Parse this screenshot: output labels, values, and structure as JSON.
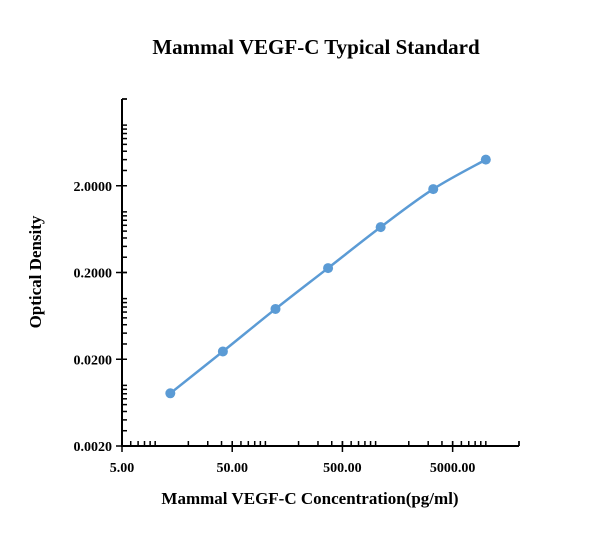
{
  "chart_data": {
    "type": "line",
    "title": "Mammal VEGF-C Typical Standard",
    "xlabel": "Mammal VEGF-C Concentration(pg/ml)",
    "ylabel": "Optical Density",
    "x_scale": "log",
    "y_scale": "log",
    "xlim": [
      5,
      20000
    ],
    "ylim": [
      0.002,
      20
    ],
    "x_ticks": [
      5,
      50,
      500,
      5000
    ],
    "x_tick_labels": [
      "5.00",
      "50.00",
      "500.00",
      "5000.00"
    ],
    "y_ticks": [
      0.002,
      0.02,
      0.2,
      2
    ],
    "y_tick_labels": [
      "0.0020",
      "0.0200",
      "0.2000",
      "2.0000"
    ],
    "grid": false,
    "legend": "none",
    "series": [
      {
        "name": "Standard",
        "color": "#5b9bd5",
        "marker": "circle",
        "x": [
          13.72,
          41.15,
          123.5,
          370.4,
          1111,
          3333,
          10000
        ],
        "y": [
          0.0081,
          0.0246,
          0.076,
          0.225,
          0.667,
          1.83,
          4.0
        ]
      }
    ]
  }
}
